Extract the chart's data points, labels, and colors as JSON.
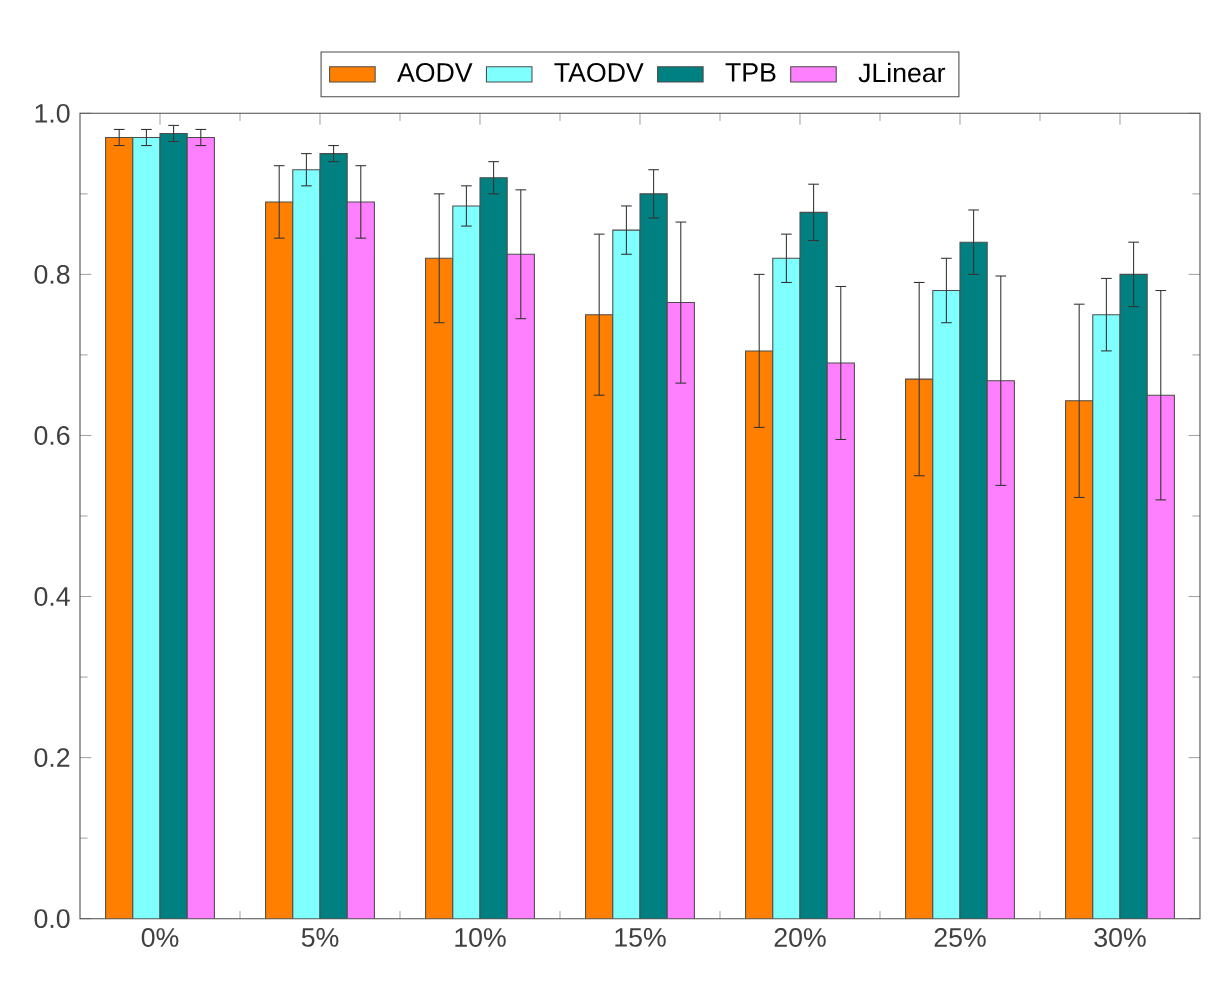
{
  "chart_data": {
    "type": "bar",
    "categories": [
      "0%",
      "5%",
      "10%",
      "15%",
      "20%",
      "25%",
      "30%"
    ],
    "series": [
      {
        "name": "AODV",
        "color": "#ff8000",
        "values": [
          0.97,
          0.89,
          0.82,
          0.75,
          0.705,
          0.67,
          0.643
        ],
        "errors": [
          0.01,
          0.045,
          0.08,
          0.1,
          0.095,
          0.12,
          0.12
        ]
      },
      {
        "name": "TAODV",
        "color": "#80ffff",
        "values": [
          0.97,
          0.93,
          0.885,
          0.855,
          0.82,
          0.78,
          0.75
        ],
        "errors": [
          0.01,
          0.02,
          0.025,
          0.03,
          0.03,
          0.04,
          0.045
        ]
      },
      {
        "name": "TPB",
        "color": "#008080",
        "values": [
          0.975,
          0.95,
          0.92,
          0.9,
          0.877,
          0.84,
          0.8
        ],
        "errors": [
          0.01,
          0.01,
          0.02,
          0.03,
          0.035,
          0.04,
          0.04
        ]
      },
      {
        "name": "JLinear",
        "color": "#ff80ff",
        "values": [
          0.97,
          0.89,
          0.825,
          0.765,
          0.69,
          0.668,
          0.65
        ],
        "errors": [
          0.01,
          0.045,
          0.08,
          0.1,
          0.095,
          0.13,
          0.13
        ]
      }
    ],
    "ylim": [
      0,
      1.0
    ],
    "yticks": [
      {
        "value": 0,
        "label": "0.0"
      },
      0.2,
      0.4,
      0.6,
      0.8,
      {
        "value": 1.0,
        "label": "1.0"
      }
    ],
    "legend": "top"
  }
}
